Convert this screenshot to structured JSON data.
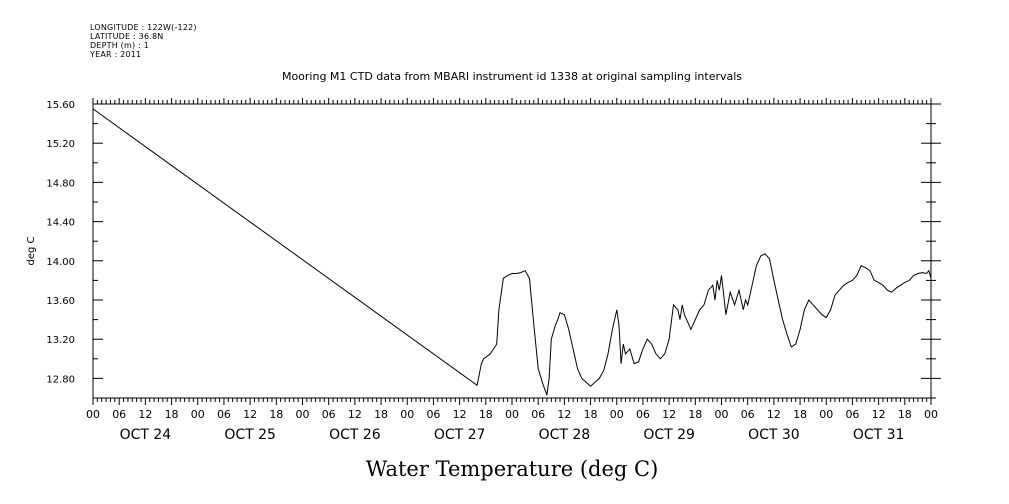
{
  "metadata": [
    "LONGITUDE : 122W(-122)",
    "LATITUDE : 36.8N",
    "DEPTH (m) : 1",
    "YEAR : 2011"
  ],
  "chart_data": {
    "type": "line",
    "title": "Mooring M1 CTD data from MBARI instrument id 1338 at original sampling intervals",
    "xlabel": "Water Temperature (deg C)",
    "ylabel": "deg C",
    "x_unit": "hours from OCT 24 00",
    "xlim": [
      0,
      192
    ],
    "ylim": [
      12.6,
      15.6
    ],
    "y_ticks": [
      12.8,
      13.2,
      13.6,
      14.0,
      14.4,
      14.8,
      15.2,
      15.6
    ],
    "y_tick_labels": [
      "12.80",
      "13.20",
      "13.60",
      "14.00",
      "14.40",
      "14.80",
      "15.20",
      "15.60"
    ],
    "hour_tick_labels": [
      "00",
      "06",
      "12",
      "18"
    ],
    "day_labels": [
      "OCT 24",
      "OCT 25",
      "OCT 26",
      "OCT 27",
      "OCT 28",
      "OCT 29",
      "OCT 30",
      "OCT 31"
    ],
    "grid": false,
    "series": [
      {
        "x": [
          0,
          88,
          89,
          89.5,
          91,
          92.5,
          93,
          94,
          95,
          96,
          97,
          98,
          99,
          100,
          101,
          102,
          103,
          104,
          104.5,
          105,
          106,
          106.5,
          107,
          108,
          109,
          110,
          111,
          112,
          114,
          116,
          117,
          118,
          119,
          120,
          120.5,
          121,
          121.5,
          122,
          123,
          124,
          125,
          126,
          127,
          128,
          129,
          130,
          131,
          132,
          133,
          134,
          134.5,
          135,
          135.5,
          136,
          137,
          138,
          139,
          140,
          141,
          142,
          142.5,
          143,
          143.5,
          144,
          145,
          146,
          147,
          148,
          149,
          149.5,
          150,
          150.5,
          151,
          152,
          153,
          154,
          155,
          156,
          157,
          158,
          159,
          160,
          161,
          162,
          163,
          164,
          165,
          166,
          167,
          168,
          169,
          170,
          171,
          172,
          173,
          174,
          175,
          176,
          177,
          178,
          179,
          180,
          181,
          182,
          183,
          184,
          185,
          186,
          187,
          188,
          189,
          190,
          191,
          191.5,
          192
        ],
        "y": [
          15.55,
          12.73,
          12.95,
          13.0,
          13.05,
          13.15,
          13.5,
          13.82,
          13.85,
          13.87,
          13.87,
          13.88,
          13.9,
          13.82,
          13.35,
          12.9,
          12.75,
          12.63,
          12.8,
          13.2,
          13.35,
          13.4,
          13.47,
          13.45,
          13.3,
          13.1,
          12.9,
          12.8,
          12.72,
          12.8,
          12.88,
          13.05,
          13.3,
          13.5,
          13.35,
          12.95,
          13.15,
          13.05,
          13.1,
          12.95,
          12.97,
          13.1,
          13.2,
          13.15,
          13.05,
          13.0,
          13.05,
          13.2,
          13.55,
          13.5,
          13.4,
          13.55,
          13.45,
          13.4,
          13.3,
          13.4,
          13.5,
          13.55,
          13.7,
          13.75,
          13.6,
          13.8,
          13.7,
          13.85,
          13.45,
          13.68,
          13.55,
          13.7,
          13.5,
          13.6,
          13.55,
          13.65,
          13.75,
          13.95,
          14.05,
          14.07,
          14.02,
          13.8,
          13.6,
          13.4,
          13.25,
          13.12,
          13.15,
          13.3,
          13.5,
          13.6,
          13.55,
          13.5,
          13.45,
          13.42,
          13.5,
          13.65,
          13.7,
          13.75,
          13.78,
          13.8,
          13.85,
          13.95,
          13.93,
          13.9,
          13.8,
          13.78,
          13.75,
          13.7,
          13.68,
          13.72,
          13.75,
          13.78,
          13.8,
          13.85,
          13.87,
          13.88,
          13.87,
          13.9,
          13.82
        ]
      }
    ]
  }
}
